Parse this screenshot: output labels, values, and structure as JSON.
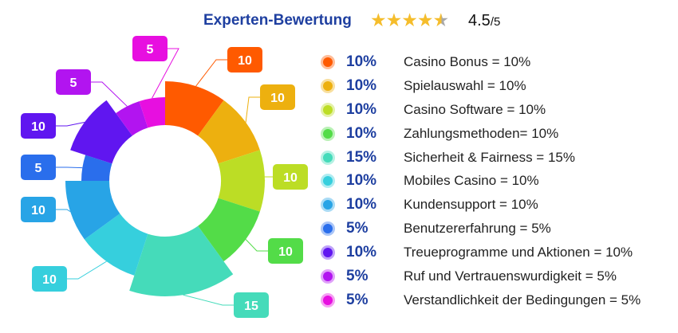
{
  "header": {
    "title": "Experten-Bewertung",
    "rating": "4.5",
    "rating_max": "/5",
    "stars": 4.5
  },
  "chart_data": {
    "type": "pie",
    "variant": "variable-radius donut",
    "categories": [
      "Casino Bonus",
      "Spielauswahl",
      "Casino Software",
      "Zahlungsmethoden",
      "Sicherheit & Fairness",
      "Mobiles Casino",
      "Kundensupport",
      "Benutzererfahrung",
      "Treueprogramme und Aktionen",
      "Ruf und Vertrauenswurdigkeit",
      "Verstandlichkeit der Bedingungen"
    ],
    "values": [
      10,
      10,
      10,
      10,
      15,
      10,
      10,
      5,
      10,
      5,
      5
    ],
    "data_labels": [
      "10",
      "10",
      "10",
      "10",
      "15",
      "10",
      "10",
      "5",
      "10",
      "5",
      "5"
    ],
    "colors": [
      "#ff5a00",
      "#edb00f",
      "#bcdd25",
      "#53dc48",
      "#45dbba",
      "#36cfdd",
      "#28a4e6",
      "#2a6eec",
      "#6016f0",
      "#b214f0",
      "#e70fe0"
    ],
    "legend_placement": "right"
  },
  "legend": [
    {
      "pct": "10%",
      "label": "Casino Bonus = 10%"
    },
    {
      "pct": "10%",
      "label": "Spielauswahl = 10%"
    },
    {
      "pct": "10%",
      "label": "Casino Software = 10%"
    },
    {
      "pct": "10%",
      "label": "Zahlungsmethoden= 10%"
    },
    {
      "pct": "15%",
      "label": "Sicherheit & Fairness = 15%"
    },
    {
      "pct": "10%",
      "label": "Mobiles Casino = 10%"
    },
    {
      "pct": "10%",
      "label": "Kundensupport = 10%"
    },
    {
      "pct": "5%",
      "label": "Benutzererfahrung = 5%"
    },
    {
      "pct": "10%",
      "label": "Treueprogramme und Aktionen = 10%"
    },
    {
      "pct": "5%",
      "label": "Ruf und Vertrauenswurdigkeit = 5%"
    },
    {
      "pct": "5%",
      "label": "Verstandlichkeit der Bedingungen = 5%"
    }
  ]
}
